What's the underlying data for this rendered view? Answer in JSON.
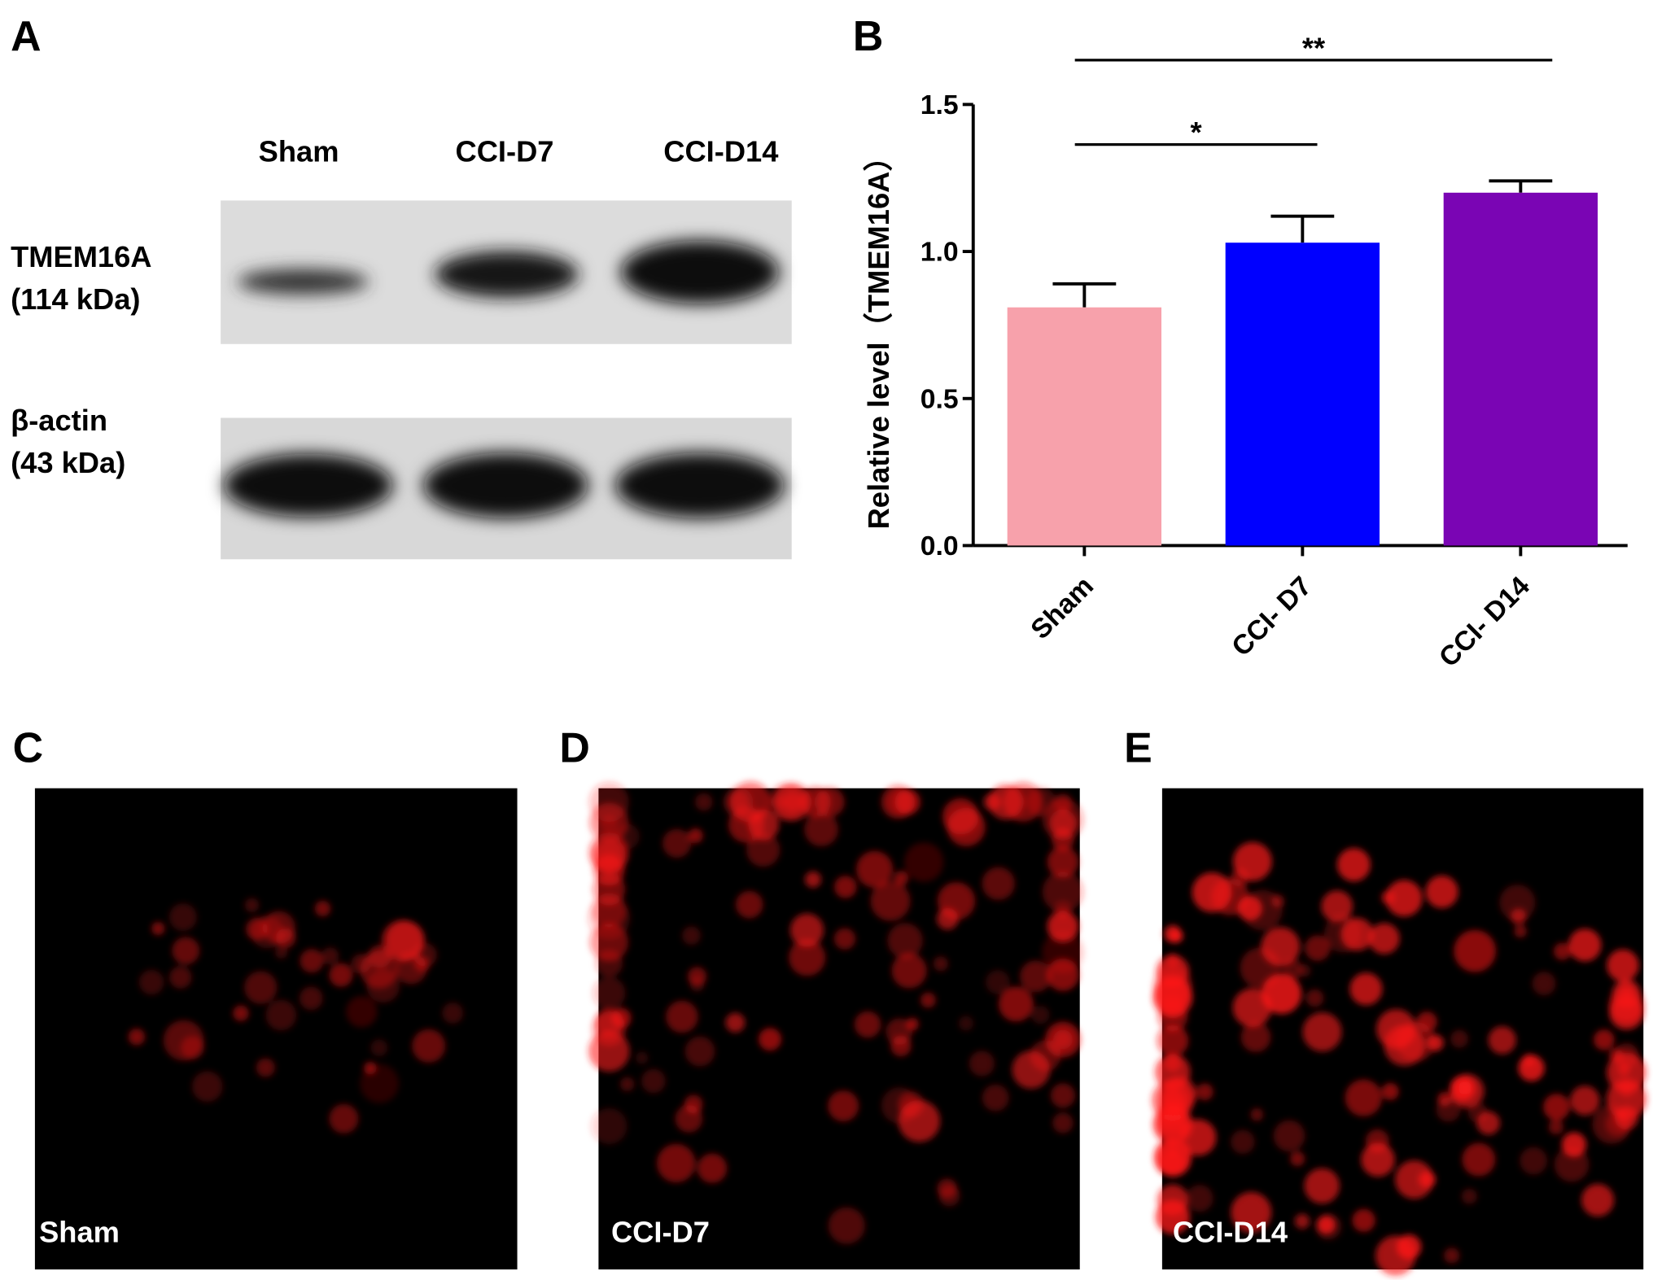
{
  "panel_labels": [
    "A",
    "B",
    "C",
    "D",
    "E"
  ],
  "blot": {
    "lanes": [
      "Sham",
      "CCI-D7",
      "CCI-D14"
    ],
    "rows": [
      {
        "label": "TMEM16A",
        "size": "(114 kDa)"
      },
      {
        "label": "β-actin",
        "size": "(43 kDa)"
      }
    ]
  },
  "chart_data": {
    "type": "bar",
    "y_label": "Relative level（TMEM16A）",
    "categories": [
      "Sham",
      "CCI- D7",
      "CCI- D14"
    ],
    "values": [
      0.81,
      1.03,
      1.2
    ],
    "errors": [
      0.08,
      0.09,
      0.04
    ],
    "colors": [
      "#f7a1ab",
      "#0000ff",
      "#7a05b4"
    ],
    "ylim": [
      0,
      1.5
    ],
    "yticks": [
      {
        "value": 0,
        "label": "0.0"
      },
      {
        "value": 0.5,
        "label": "0.5"
      },
      {
        "value": 1,
        "label": "1.0"
      },
      {
        "value": 1.5,
        "label": "1.5"
      }
    ],
    "annotations": [
      {
        "text": "*",
        "between": [
          0,
          1
        ]
      },
      {
        "text": "**",
        "between": [
          0,
          2
        ]
      }
    ]
  },
  "micrographs": [
    "Sham",
    "CCI-D7",
    "CCI-D14"
  ]
}
